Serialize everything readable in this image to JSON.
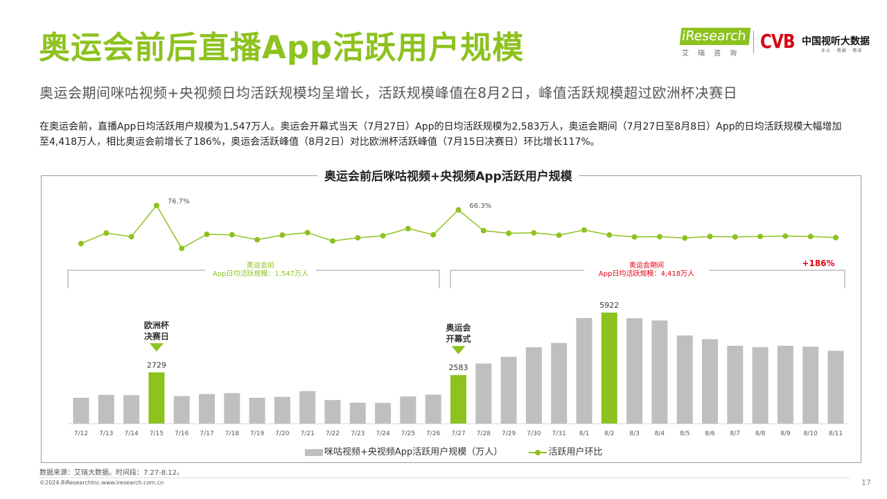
{
  "header": {
    "title": "奥运会前后直播App活跃用户规模",
    "subtitle": "奥运会期间咪咕视频+央视频日均活跃规模均呈增长，活跃规模峰值在8月2日，峰值活跃规模超过欧洲杯决赛日"
  },
  "body_text": "在奥运会前，直播App日均活跃用户规模为1,547万人。奥运会开幕式当天（7月27日）App的日均活跃规模为2,583万人，奥运会期间（7月27日至8月8日）App的日均活跃规模大幅增加至4,418万人，相比奥运会前增长了186%，奥运会活跃峰值（8月2日）对比欧洲杯活跃峰值（7月15日决赛日）环比增长117%。",
  "logos": {
    "iresearch_i": "i",
    "iresearch_name": "Research",
    "iresearch_cn": "艾瑞咨询",
    "cvb_mark": "CVB",
    "cvb_name": "中国视听大数据",
    "cvb_slogan": "多元 · 精细 · 精准"
  },
  "colors": {
    "accent_green": "#8dc21f",
    "bar_gray": "#bfbfbf",
    "highlight_red": "#e60012"
  },
  "chart_data": {
    "type": "bar",
    "title": "奥运会前后咪咕视频+央视频App活跃用户规模",
    "categories": [
      "7/12",
      "7/13",
      "7/14",
      "7/15",
      "7/16",
      "7/17",
      "7/18",
      "7/19",
      "7/20",
      "7/21",
      "7/22",
      "7/23",
      "7/24",
      "7/25",
      "7/26",
      "7/27",
      "7/28",
      "7/29",
      "7/30",
      "7/31",
      "8/1",
      "8/2",
      "8/3",
      "8/4",
      "8/5",
      "8/6",
      "8/7",
      "8/8",
      "8/9",
      "8/10",
      "8/11"
    ],
    "series": [
      {
        "name": "咪咕视频+央视频App活跃用户规模（万人）",
        "type": "bar",
        "values": [
          1370,
          1530,
          1510,
          2729,
          1460,
          1570,
          1620,
          1370,
          1420,
          1730,
          1250,
          1110,
          1100,
          1440,
          1540,
          2583,
          3200,
          3560,
          4070,
          4300,
          5630,
          5922,
          5620,
          5500,
          4700,
          4500,
          4150,
          4080,
          4150,
          4100,
          3880
        ],
        "highlight_indices": [
          3,
          15,
          21
        ],
        "labels": {
          "3": "2729",
          "15": "2583",
          "21": "5922"
        }
      },
      {
        "name": "活跃用户环比",
        "type": "line",
        "values": [
          -12.0,
          12.5,
          4.0,
          76.7,
          -23.0,
          9.5,
          8.5,
          -3.0,
          7.8,
          13.5,
          -6.0,
          1.5,
          6.2,
          23.0,
          8.5,
          66.3,
          18.0,
          12.0,
          13.0,
          7.5,
          19.5,
          8.0,
          3.5,
          4.0,
          1.0,
          4.5,
          3.5,
          4.5,
          5.5,
          4.5,
          2.0
        ],
        "labels": {
          "3": "76.7%",
          "15": "66.3%"
        }
      }
    ],
    "annotations": {
      "before_label1": "奥运会前",
      "before_label2": "App日均活跃规模：1,547万人",
      "during_label1": "奥运会期间",
      "during_label2": "App日均活跃规模：4,418万人",
      "growth": "+186%",
      "euro_marker": "欧洲杯\n决赛日",
      "olympic_marker": "奥运会\n开幕式"
    },
    "legend_position": "bottom"
  },
  "footer": {
    "source": "数据来源：艾瑞大数据。时间段：7.27-8.12。",
    "copyright": "©2024.8iResearchInc.www.iresearch.com.cn",
    "page": "17"
  }
}
